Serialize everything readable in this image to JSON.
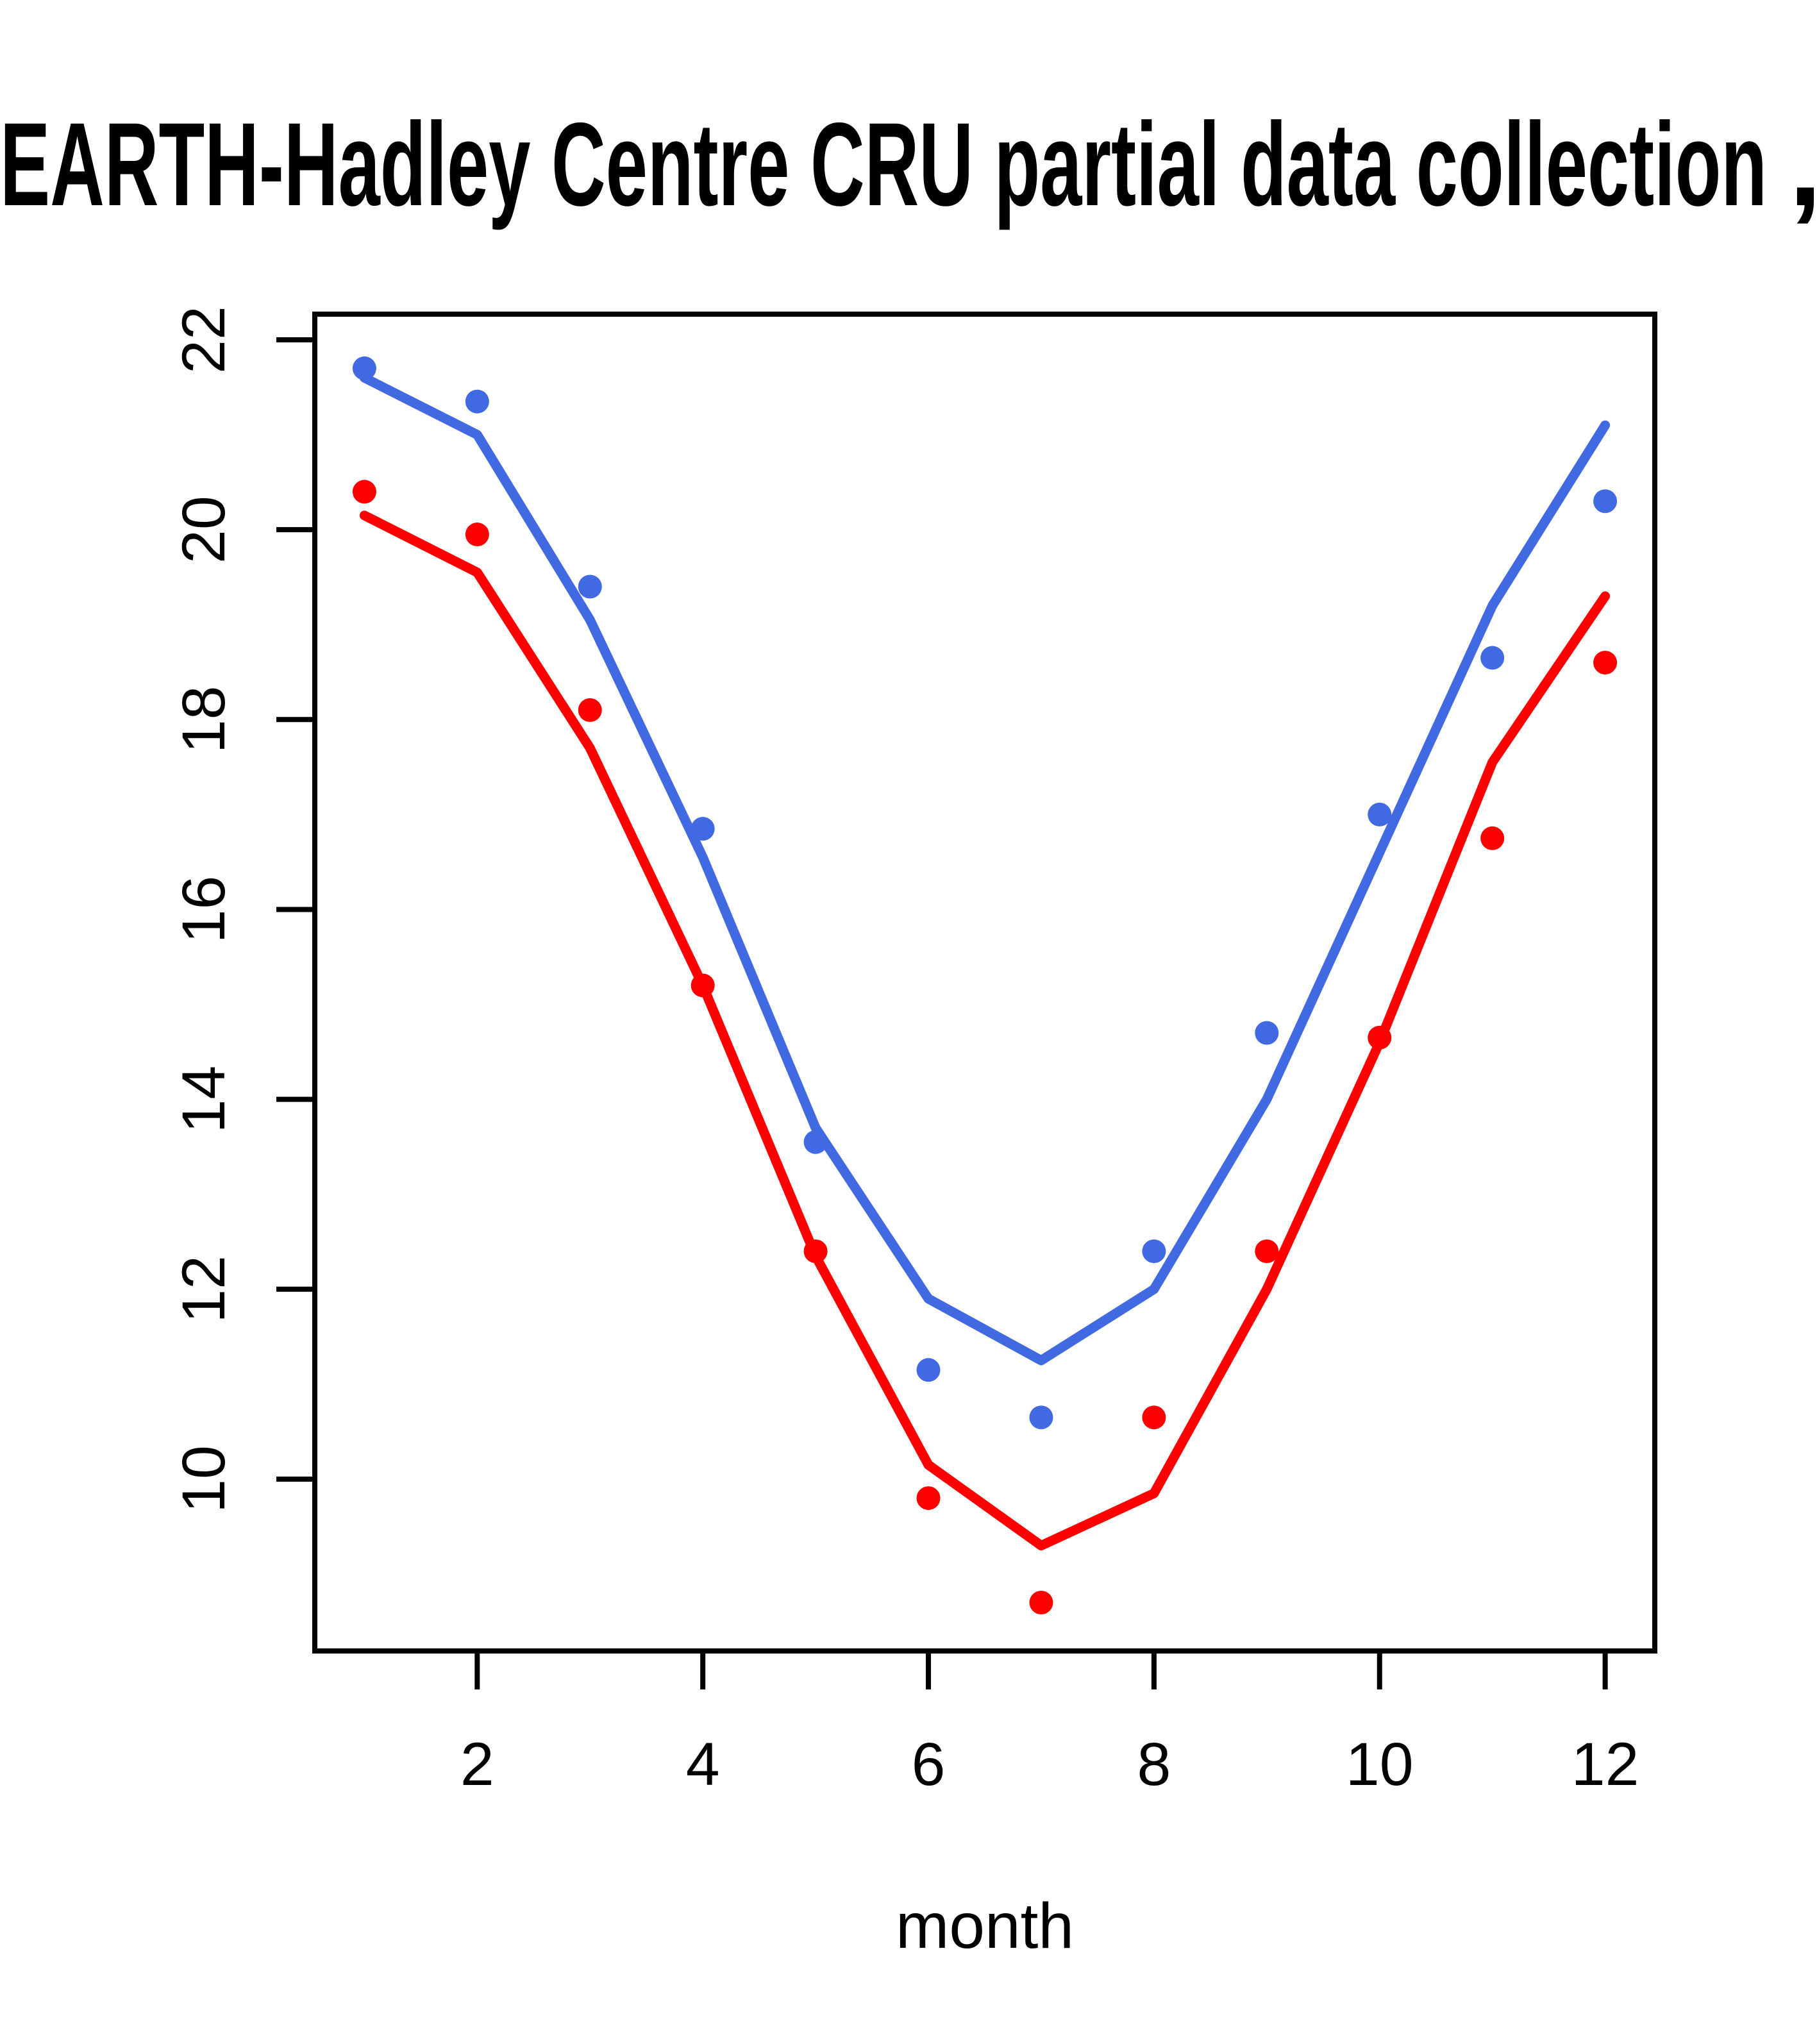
{
  "title": "EARTH-Hadley Centre  CRU partial data collection",
  "title_clipped_suffix": ",",
  "xlabel": "month",
  "colors": {
    "blue_series": "#4169E1",
    "red_series": "#FF0000",
    "axis": "#000000",
    "background": "#FFFFFF"
  },
  "chart_data": {
    "type": "line",
    "title": "EARTH-Hadley Centre  CRU partial data collection",
    "xlabel": "month",
    "ylabel": "",
    "x": [
      1,
      2,
      3,
      4,
      5,
      6,
      7,
      8,
      9,
      10,
      11,
      12
    ],
    "xticks": [
      2,
      4,
      6,
      8,
      10,
      12
    ],
    "yticks": [
      10,
      12,
      14,
      16,
      18,
      20,
      22
    ],
    "xlim": [
      0.56,
      12.44
    ],
    "ylim": [
      8.19,
      22.27
    ],
    "grid": false,
    "legend": "none",
    "series": [
      {
        "name": "blue-line",
        "kind": "line",
        "color": "#4169E1",
        "values": [
          21.6,
          21.0,
          19.05,
          16.55,
          13.7,
          11.9,
          11.25,
          12.0,
          14.0,
          16.6,
          19.2,
          21.1
        ]
      },
      {
        "name": "blue-points",
        "kind": "scatter",
        "color": "#4169E1",
        "values": [
          21.7,
          21.35,
          19.4,
          16.85,
          13.55,
          11.15,
          10.65,
          12.4,
          14.7,
          17.0,
          18.65,
          20.3
        ]
      },
      {
        "name": "red-line",
        "kind": "line",
        "color": "#FF0000",
        "values": [
          20.15,
          19.55,
          17.7,
          15.2,
          12.35,
          10.15,
          9.3,
          9.85,
          12.0,
          14.6,
          17.55,
          19.3
        ]
      },
      {
        "name": "red-points",
        "kind": "scatter",
        "color": "#FF0000",
        "values": [
          20.4,
          19.95,
          18.1,
          15.2,
          12.4,
          9.8,
          8.7,
          10.65,
          12.4,
          14.65,
          16.75,
          18.6
        ]
      }
    ]
  }
}
